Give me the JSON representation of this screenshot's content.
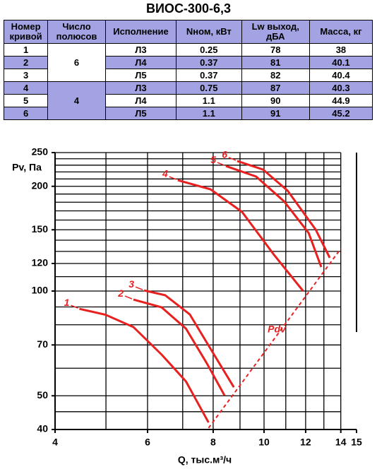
{
  "title": "ВИОС-300-6,3",
  "table": {
    "columns": [
      "Номер кривой",
      "Число полюсов",
      "Исполнение",
      "Nном, кВт",
      "Lw выход, дБА",
      "Масса, кг"
    ],
    "poles": [
      "6",
      "4"
    ],
    "rows": [
      [
        "1",
        "Л3",
        "0.25",
        "78",
        "38"
      ],
      [
        "2",
        "Л4",
        "0.37",
        "81",
        "40.1"
      ],
      [
        "3",
        "Л5",
        "0.37",
        "82",
        "40.4"
      ],
      [
        "4",
        "Л3",
        "0.75",
        "87",
        "40.3"
      ],
      [
        "5",
        "Л4",
        "1.1",
        "90",
        "44.9"
      ],
      [
        "6",
        "Л5",
        "1.1",
        "91",
        "45.2"
      ]
    ]
  },
  "chart_data": {
    "type": "line",
    "x_label": "Q, тыс.м³/ч",
    "y_label": "Pv, Па",
    "log_x": true,
    "log_y": true,
    "xlim": [
      4,
      15
    ],
    "ylim": [
      40,
      250
    ],
    "xticks": [
      4,
      6,
      8,
      10,
      12,
      14,
      15
    ],
    "yticks": [
      40,
      50,
      70,
      100,
      120,
      150,
      200,
      250
    ],
    "xgrid": [
      4,
      5,
      6,
      7,
      8,
      9,
      10,
      11,
      12,
      13,
      14
    ],
    "ygrid": [
      40,
      45,
      50,
      60,
      70,
      80,
      90,
      100,
      110,
      120,
      130,
      140,
      150,
      160,
      170,
      180,
      190,
      200,
      210,
      220,
      230,
      240,
      250
    ],
    "series": [
      {
        "name": "1",
        "color": "#e8201f",
        "x": [
          4.45,
          4.99,
          5.64,
          6.38,
          7.1,
          7.84
        ],
        "values": [
          88.9,
          85.5,
          78.8,
          65.7,
          55.0,
          41.9
        ]
      },
      {
        "name": "2",
        "color": "#e8201f",
        "x": [
          5.64,
          6.38,
          7.1,
          7.79,
          8.41
        ],
        "values": [
          94.5,
          89.8,
          78.0,
          61.8,
          50.1
        ]
      },
      {
        "name": "3",
        "color": "#e8201f",
        "x": [
          5.91,
          6.48,
          7.22,
          8.03,
          8.76
        ],
        "values": [
          100.4,
          97.3,
          85.7,
          65.7,
          52.9
        ]
      },
      {
        "name": "4",
        "color": "#e8201f",
        "x": [
          6.85,
          7.91,
          9.08,
          10.43,
          11.87
        ],
        "values": [
          208.3,
          196,
          168.8,
          127.5,
          100
        ]
      },
      {
        "name": "5",
        "color": "#e8201f",
        "x": [
          8.46,
          9.66,
          10.92,
          12.16,
          12.85
        ],
        "values": [
          228.7,
          213.3,
          181,
          146.8,
          117.2
        ]
      },
      {
        "name": "6",
        "color": "#e8201f",
        "x": [
          8.89,
          9.96,
          11.09,
          12.54,
          13.34
        ],
        "values": [
          236.4,
          223.4,
          194.2,
          150.2,
          124.6
        ]
      }
    ],
    "pdv": {
      "label": "Pdv",
      "x": [
        7.84,
        14
      ],
      "values": [
        40.4,
        132.4
      ]
    }
  }
}
